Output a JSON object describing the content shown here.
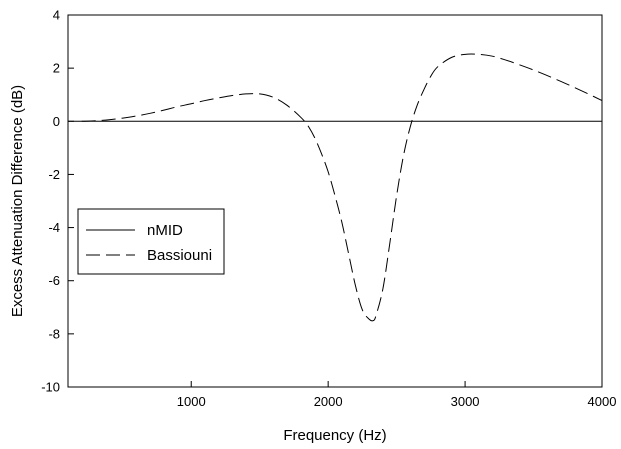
{
  "chart_data": {
    "type": "line",
    "title": "",
    "xlabel": "Frequency (Hz)",
    "ylabel": "Excess Attenuation Difference (dB)",
    "xlim": [
      100,
      4000
    ],
    "ylim": [
      -10,
      4
    ],
    "xticks": [
      1000,
      2000,
      3000,
      4000
    ],
    "xtick_labels": [
      "1000",
      "2000",
      "3000",
      "4000"
    ],
    "yticks": [
      -10,
      -8,
      -6,
      -4,
      -2,
      0,
      2,
      4
    ],
    "ytick_labels": [
      "-10",
      "-8",
      "-6",
      "-4",
      "-2",
      "0",
      "2",
      "4"
    ],
    "grid": false,
    "legend_position": "center-left",
    "series": [
      {
        "name": "nMID",
        "style": "solid",
        "color": "#000000",
        "x": [
          100,
          4000
        ],
        "y": [
          0,
          0
        ]
      },
      {
        "name": "Bassiouni",
        "style": "dashed",
        "color": "#000000",
        "x": [
          200,
          300,
          400,
          500,
          600,
          700,
          800,
          900,
          1000,
          1100,
          1200,
          1300,
          1400,
          1500,
          1600,
          1700,
          1800,
          1850,
          1900,
          1950,
          2000,
          2050,
          2100,
          2150,
          2200,
          2250,
          2300,
          2330,
          2350,
          2400,
          2450,
          2500,
          2550,
          2600,
          2650,
          2700,
          2750,
          2800,
          2900,
          3000,
          3100,
          3200,
          3300,
          3400,
          3500,
          3600,
          3700,
          3800,
          3900,
          4000
        ],
        "y": [
          0.0,
          0.02,
          0.06,
          0.12,
          0.2,
          0.3,
          0.42,
          0.55,
          0.66,
          0.78,
          0.88,
          0.97,
          1.03,
          1.03,
          0.9,
          0.6,
          0.15,
          -0.15,
          -0.6,
          -1.2,
          -1.9,
          -2.8,
          -3.8,
          -5.0,
          -6.2,
          -7.1,
          -7.45,
          -7.5,
          -7.3,
          -6.3,
          -4.6,
          -2.8,
          -1.3,
          -0.2,
          0.6,
          1.2,
          1.7,
          2.05,
          2.4,
          2.52,
          2.52,
          2.45,
          2.3,
          2.12,
          1.93,
          1.72,
          1.5,
          1.27,
          1.03,
          0.78
        ]
      }
    ]
  }
}
